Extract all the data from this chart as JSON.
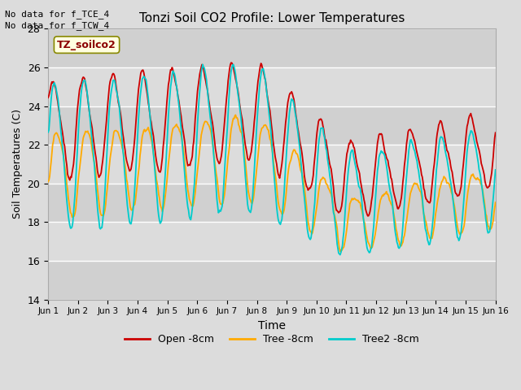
{
  "title": "Tonzi Soil CO2 Profile: Lower Temperatures",
  "xlabel": "Time",
  "ylabel": "Soil Temperatures (C)",
  "top_text_1": "No data for f_TCE_4",
  "top_text_2": "No data for f_TCW_4",
  "legend_label": "TZ_soilco2",
  "ylim": [
    14,
    28
  ],
  "yticks": [
    14,
    16,
    18,
    20,
    22,
    24,
    26,
    28
  ],
  "xtick_labels": [
    "Jun 1",
    "Jun 2",
    "Jun 3",
    "Jun 4",
    "Jun 5",
    "Jun 6",
    "Jun 7",
    "Jun 8",
    "Jun 9",
    "Jun 10",
    "Jun 11",
    "Jun 12",
    "Jun 13",
    "Jun 14",
    "Jun 15",
    "Jun 16"
  ],
  "series_labels": [
    "Open -8cm",
    "Tree -8cm",
    "Tree2 -8cm"
  ],
  "colors": [
    "#cc0000",
    "#ffaa00",
    "#00cccc"
  ],
  "bg_color": "#dcdcdc",
  "grid_color": "#ffffff",
  "n_points": 600
}
